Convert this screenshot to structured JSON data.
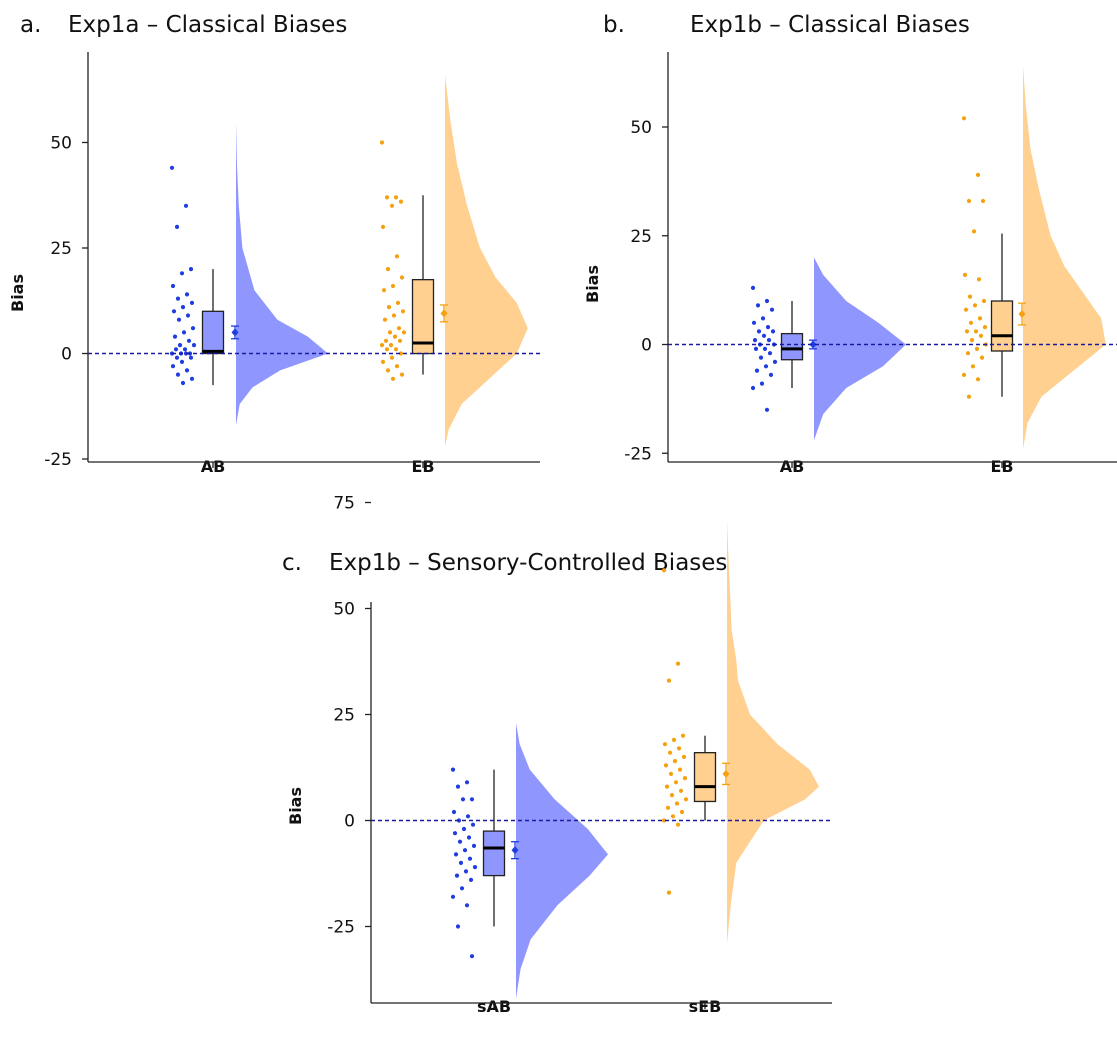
{
  "colors": {
    "ab_point": "#1f3de0",
    "ab_fill": "#8f97ff",
    "eb_point": "#f5a10f",
    "eb_fill": "#ffd08f",
    "zero_line": "#1a1aa0",
    "axis": "#222222"
  },
  "chart_data": [
    {
      "type": "raincloud",
      "letter": "a.",
      "title": "Exp1a – Classical Biases",
      "ylabel": "Bias",
      "ylim": [
        -26,
        66
      ],
      "yticks": [
        "50",
        "25",
        "0",
        "-25"
      ],
      "categories": [
        "AB",
        "EB"
      ],
      "series": [
        {
          "name": "AB",
          "points": [
            44,
            35,
            30,
            20,
            19,
            16,
            14,
            13,
            12,
            11,
            10,
            9,
            8,
            6,
            5,
            4,
            3,
            2,
            2,
            1,
            1,
            0,
            0,
            0,
            0,
            -1,
            -1,
            -2,
            -3,
            -4,
            -5,
            -6,
            -7
          ],
          "box": {
            "min": -7.5,
            "q1": 0,
            "median": 0.5,
            "q3": 10,
            "max": 20
          },
          "mean": 5,
          "ci": [
            3.5,
            6.5
          ],
          "density": {
            "y": [
              -17,
              -12,
              -8,
              -4,
              0,
              4,
              8,
              15,
              25,
              35,
              45,
              55
            ],
            "w": [
              0,
              0.04,
              0.18,
              0.48,
              1.0,
              0.78,
              0.45,
              0.2,
              0.07,
              0.03,
              0.01,
              0
            ]
          }
        },
        {
          "name": "EB",
          "points": [
            50,
            37,
            37,
            36,
            35,
            30,
            23,
            20,
            18,
            16,
            15,
            12,
            11,
            10,
            9,
            8,
            6,
            5,
            5,
            4,
            3,
            3,
            2,
            2,
            1,
            1,
            0,
            -1,
            -2,
            -3,
            -4,
            -5,
            -6
          ],
          "box": {
            "min": -5,
            "q1": 0,
            "median": 2.5,
            "q3": 17.5,
            "max": 37.5
          },
          "mean": 9.5,
          "ci": [
            7.5,
            11.5
          ],
          "density": {
            "y": [
              -22,
              -18,
              -12,
              -6,
              0,
              6,
              12,
              18,
              25,
              35,
              45,
              55,
              66
            ],
            "w": [
              0,
              0.04,
              0.18,
              0.48,
              0.78,
              0.9,
              0.78,
              0.55,
              0.38,
              0.24,
              0.13,
              0.06,
              0
            ]
          }
        }
      ]
    },
    {
      "type": "raincloud",
      "letter": "b.",
      "title": "Exp1b – Classical Biases",
      "ylabel": "Bias",
      "ylim": [
        -28,
        66
      ],
      "yticks": [
        "50",
        "25",
        "0",
        "-25"
      ],
      "categories": [
        "AB",
        "EB"
      ],
      "series": [
        {
          "name": "AB",
          "points": [
            13,
            10,
            9,
            8,
            6,
            5,
            4,
            3,
            3,
            2,
            1,
            1,
            0,
            0,
            -1,
            -1,
            -2,
            -3,
            -4,
            -5,
            -6,
            -7,
            -9,
            -10,
            -15
          ],
          "box": {
            "min": -10,
            "q1": -3.5,
            "median": -1,
            "q3": 2.5,
            "max": 10
          },
          "mean": 0,
          "ci": [
            -1,
            1
          ],
          "density": {
            "y": [
              -22,
              -16,
              -10,
              -5,
              0,
              5,
              10,
              16,
              20
            ],
            "w": [
              0,
              0.1,
              0.35,
              0.75,
              1.0,
              0.7,
              0.35,
              0.1,
              0
            ]
          }
        },
        {
          "name": "EB",
          "points": [
            52,
            39,
            33,
            33,
            26,
            16,
            15,
            11,
            10,
            9,
            8,
            6,
            5,
            4,
            3,
            3,
            2,
            1,
            0,
            -1,
            -2,
            -3,
            -5,
            -7,
            -8,
            -12
          ],
          "box": {
            "min": -12,
            "q1": -1.5,
            "median": 2,
            "q3": 10,
            "max": 25.5
          },
          "mean": 7,
          "ci": [
            4.5,
            9.5
          ],
          "density": {
            "y": [
              -24,
              -18,
              -12,
              -6,
              0,
              6,
              12,
              18,
              25,
              35,
              45,
              55,
              64
            ],
            "w": [
              0,
              0.05,
              0.2,
              0.55,
              0.9,
              0.85,
              0.65,
              0.45,
              0.3,
              0.18,
              0.08,
              0.03,
              0
            ]
          }
        }
      ]
    },
    {
      "type": "raincloud",
      "letter": "c.",
      "title": "Exp1b – Sensory-Controlled Biases",
      "ylabel": "Bias",
      "ylim": [
        -46,
        76
      ],
      "yticks": [
        "75",
        "50",
        "25",
        "0",
        "-25"
      ],
      "categories": [
        "sAB",
        "sEB"
      ],
      "series": [
        {
          "name": "sAB",
          "points": [
            12,
            9,
            8,
            5,
            5,
            2,
            1,
            0,
            -1,
            -2,
            -3,
            -4,
            -5,
            -6,
            -7,
            -8,
            -9,
            -10,
            -11,
            -12,
            -13,
            -14,
            -16,
            -18,
            -20,
            -25,
            -32
          ],
          "box": {
            "min": -25,
            "q1": -13,
            "median": -6.5,
            "q3": -2.5,
            "max": 12
          },
          "mean": -7,
          "ci": [
            -9,
            -5
          ],
          "density": {
            "y": [
              -42,
              -35,
              -28,
              -20,
              -13,
              -8,
              -2,
              5,
              12,
              18,
              23
            ],
            "w": [
              0,
              0.05,
              0.16,
              0.45,
              0.8,
              1.0,
              0.78,
              0.42,
              0.15,
              0.04,
              0
            ]
          }
        },
        {
          "name": "sEB",
          "points": [
            59,
            37,
            33,
            20,
            19,
            18,
            17,
            16,
            15,
            14,
            13,
            12,
            11,
            10,
            9,
            8,
            7,
            6,
            5,
            4,
            3,
            2,
            1,
            0,
            -1,
            -17
          ],
          "box": {
            "min": 0,
            "q1": 4.5,
            "median": 8,
            "q3": 16,
            "max": 20
          },
          "mean": 11,
          "ci": [
            8.5,
            13.5
          ],
          "density": {
            "y": [
              -29,
              -20,
              -10,
              0,
              5,
              8,
              12,
              18,
              25,
              33,
              38,
              45,
              55,
              65,
              71
            ],
            "w": [
              0,
              0.04,
              0.1,
              0.4,
              0.85,
              1.0,
              0.9,
              0.55,
              0.25,
              0.12,
              0.1,
              0.05,
              0.03,
              0.01,
              0
            ]
          }
        }
      ]
    }
  ]
}
